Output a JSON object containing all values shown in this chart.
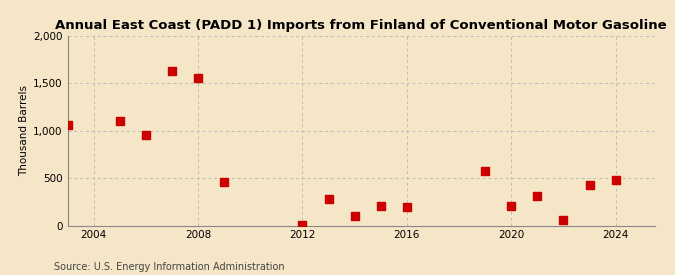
{
  "title": "Annual East Coast (PADD 1) Imports from Finland of Conventional Motor Gasoline",
  "ylabel": "Thousand Barrels",
  "source": "Source: U.S. Energy Information Administration",
  "background_color": "#f5e6c8",
  "plot_background_color": "#f5e6c8",
  "point_color": "#cc0000",
  "grid_color": "#bbbbbb",
  "years": [
    2003,
    2005,
    2006,
    2007,
    2008,
    2009,
    2012,
    2013,
    2014,
    2015,
    2016,
    2019,
    2020,
    2021,
    2022,
    2023,
    2024
  ],
  "values": [
    1055,
    1100,
    950,
    1630,
    1550,
    460,
    5,
    280,
    100,
    210,
    200,
    570,
    210,
    310,
    60,
    430,
    475
  ],
  "xlim": [
    2003.0,
    2025.5
  ],
  "ylim": [
    0,
    2000
  ],
  "xticks": [
    2004,
    2008,
    2012,
    2016,
    2020,
    2024
  ],
  "yticks": [
    0,
    500,
    1000,
    1500,
    2000
  ],
  "title_fontsize": 9.5,
  "label_fontsize": 7.5,
  "tick_fontsize": 7.5,
  "source_fontsize": 7,
  "marker_size": 30
}
